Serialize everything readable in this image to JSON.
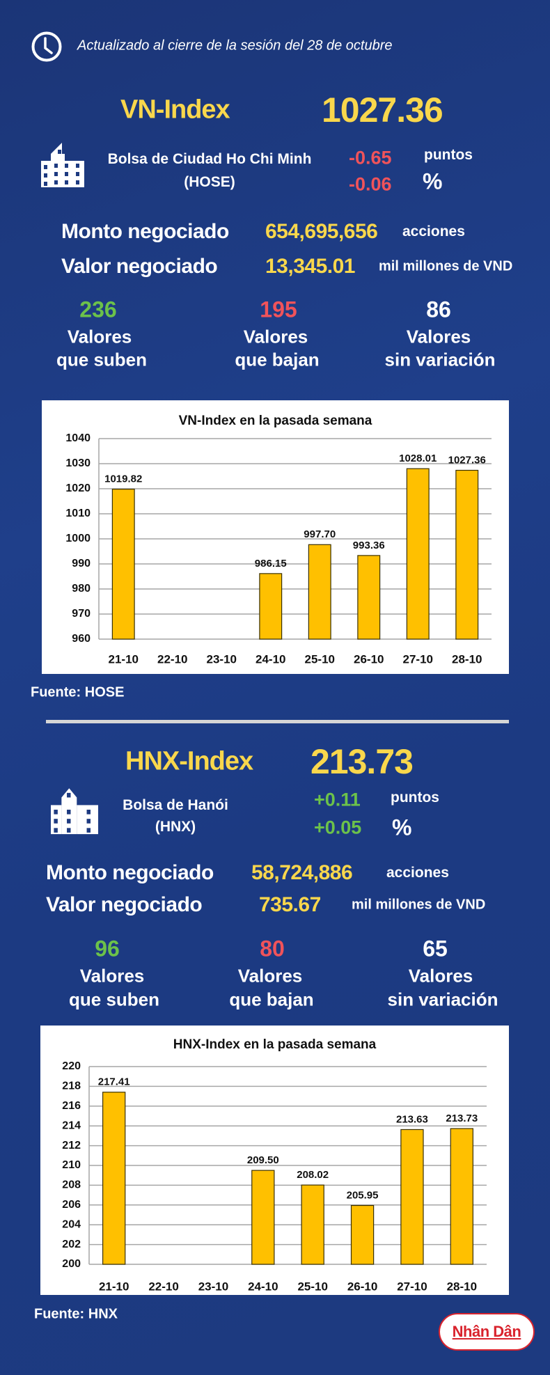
{
  "header": {
    "updated": "Actualizado al cierre de la sesión del 28 de octubre",
    "icon": "clock-icon"
  },
  "colors": {
    "background": "#1d3a80",
    "accent": "#f9d74c",
    "up": "#6cc24a",
    "down": "#f0535a",
    "bar": "#ffc000"
  },
  "vn": {
    "name": "VN-Index",
    "value": "1027.36",
    "exchange_line1": "Bolsa de Ciudad Ho Chi Minh",
    "exchange_line2": "(HOSE)",
    "change_points": "-0.65",
    "points_unit": "puntos",
    "change_pct": "-0.06",
    "pct_unit": "%",
    "volume_label": "Monto negociado",
    "volume": "654,695,656",
    "volume_unit": "acciones",
    "value_label": "Valor negociado",
    "traded_value": "13,345.01",
    "value_unit": "mil millones de VND",
    "up_count": "236",
    "down_count": "195",
    "flat_count": "86",
    "source": "Fuente: HOSE"
  },
  "hnx": {
    "name": "HNX-Index",
    "value": "213.73",
    "exchange_line1": "Bolsa de Hanói",
    "exchange_line2": "(HNX)",
    "change_points": "+0.11",
    "points_unit": "puntos",
    "change_pct": "+0.05",
    "pct_unit": "%",
    "volume_label": "Monto negociado",
    "volume": "58,724,886",
    "volume_unit": "acciones",
    "value_label": "Valor negociado",
    "traded_value": "735.67",
    "value_unit": "mil millones de VND",
    "up_count": "96",
    "down_count": "80",
    "flat_count": "65",
    "source": "Fuente:  HNX"
  },
  "labels": {
    "valores": "Valores",
    "up": "que suben",
    "down": "que bajan",
    "flat": "sin variación"
  },
  "logo": "Nhân Dân",
  "chart_data": [
    {
      "type": "bar",
      "title": "VN-Index en la pasada semana",
      "categories": [
        "21-10",
        "22-10",
        "23-10",
        "24-10",
        "25-10",
        "26-10",
        "27-10",
        "28-10"
      ],
      "values": [
        1019.82,
        null,
        null,
        986.15,
        997.7,
        993.36,
        1028.01,
        1027.36
      ],
      "data_labels": [
        "1019.82",
        "",
        "",
        "986.15",
        "997.70",
        "993.36",
        "1028.01",
        "1027.36"
      ],
      "ylim": [
        960,
        1040
      ],
      "yticks": [
        960,
        970,
        980,
        990,
        1000,
        1010,
        1020,
        1030,
        1040
      ],
      "grid": true
    },
    {
      "type": "bar",
      "title": "HNX-Index en la pasada semana",
      "categories": [
        "21-10",
        "22-10",
        "23-10",
        "24-10",
        "25-10",
        "26-10",
        "27-10",
        "28-10"
      ],
      "values": [
        217.41,
        null,
        null,
        209.5,
        208.02,
        205.95,
        213.63,
        213.73
      ],
      "data_labels": [
        "217.41",
        "",
        "",
        "209.50",
        "208.02",
        "205.95",
        "213.63",
        "213.73"
      ],
      "ylim": [
        200,
        220
      ],
      "yticks": [
        200,
        202,
        204,
        206,
        208,
        210,
        212,
        214,
        216,
        218,
        220
      ],
      "grid": true
    }
  ]
}
